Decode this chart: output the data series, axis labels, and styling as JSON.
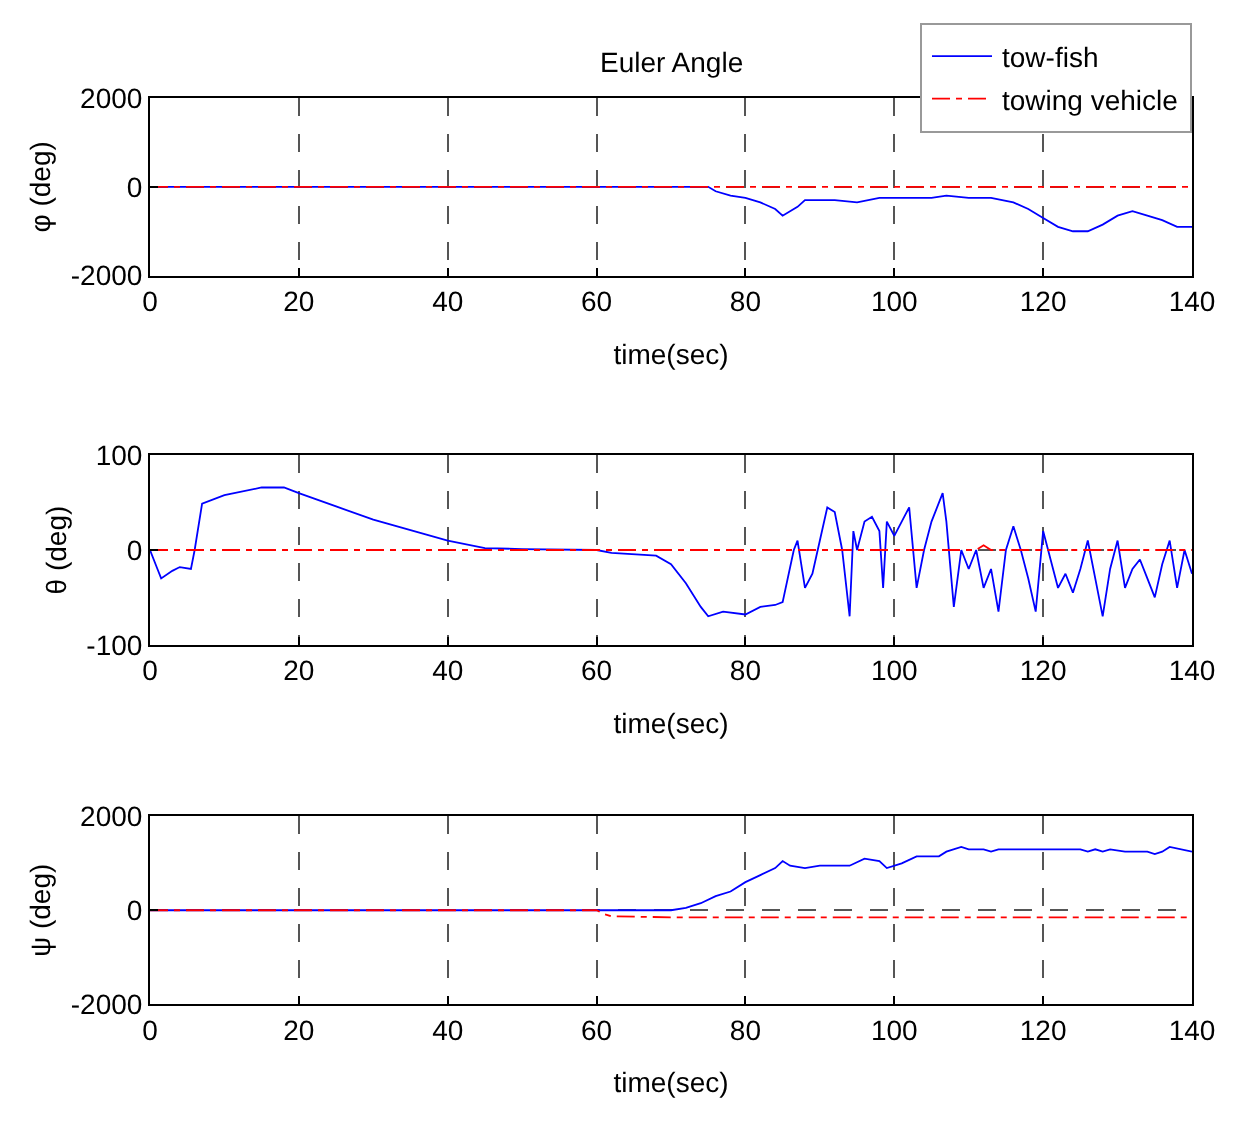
{
  "chart_data": [
    {
      "type": "line",
      "title": "Euler Angle",
      "xlabel": "time(sec)",
      "ylabel": "φ (deg)",
      "xlim": [
        0,
        140
      ],
      "xticks": [
        0,
        20,
        40,
        60,
        80,
        100,
        120,
        140
      ],
      "ylim": [
        -2000,
        2000
      ],
      "yticks": [
        -2000,
        0,
        2000
      ],
      "grid": true,
      "legend": "top right",
      "marker": "none",
      "series": [
        {
          "name": "tow-fish",
          "color": "#0000ff",
          "line_style": "solid",
          "x": [
            0,
            75,
            76,
            78,
            80,
            82,
            84,
            85,
            87,
            88,
            92,
            95,
            98,
            100,
            105,
            107,
            110,
            113,
            116,
            118,
            120,
            122,
            124,
            126,
            128,
            130,
            132,
            134,
            136,
            138,
            140
          ],
          "values": [
            0,
            0,
            -100,
            -200,
            -250,
            -350,
            -500,
            -650,
            -450,
            -300,
            -300,
            -350,
            -250,
            -250,
            -250,
            -200,
            -250,
            -250,
            -350,
            -500,
            -700,
            -900,
            -1000,
            -1000,
            -850,
            -650,
            -550,
            -650,
            -750,
            -900,
            -900
          ]
        },
        {
          "name": "towing vehicle",
          "color": "#ff0000",
          "line_style": "dashed",
          "x": [
            0,
            140
          ],
          "values": [
            0,
            0
          ]
        }
      ]
    },
    {
      "type": "line",
      "xlabel": "time(sec)",
      "ylabel": "θ (deg)",
      "xlim": [
        0,
        140
      ],
      "xticks": [
        0,
        20,
        40,
        60,
        80,
        100,
        120,
        140
      ],
      "ylim": [
        -100,
        100
      ],
      "yticks": [
        -100,
        0,
        100
      ],
      "grid": true,
      "marker": "none",
      "series": [
        {
          "color": "#0000ff",
          "line_style": "solid",
          "x": [
            0,
            1,
            1.5,
            3,
            4,
            5.5,
            6,
            7,
            10,
            15,
            18,
            20,
            25,
            30,
            35,
            40,
            45,
            50,
            60,
            62,
            68,
            70,
            72,
            74,
            75,
            77,
            80,
            82,
            84,
            85,
            86.5,
            87,
            88,
            89,
            90,
            91,
            92,
            93,
            94,
            94.5,
            95,
            96,
            97,
            98,
            98.5,
            99,
            100,
            101,
            102,
            103,
            104,
            105,
            106.5,
            107,
            108,
            109,
            110,
            111,
            112,
            113,
            114,
            115,
            116,
            117,
            118,
            119,
            120,
            121,
            122,
            123,
            124,
            125,
            126,
            127,
            128,
            129,
            130,
            131,
            132,
            133,
            134,
            135,
            136,
            137,
            138,
            139,
            140
          ],
          "values": [
            0,
            -20,
            -30,
            -22,
            -18,
            -20,
            0,
            49,
            58,
            66,
            66,
            60,
            46,
            32,
            21,
            10,
            2,
            1,
            0,
            -3,
            -6,
            -15,
            -35,
            -60,
            -70,
            -65,
            -68,
            -60,
            -58,
            -55,
            0,
            10,
            -40,
            -25,
            10,
            45,
            40,
            0,
            -70,
            20,
            0,
            30,
            35,
            20,
            -40,
            30,
            15,
            30,
            45,
            -40,
            0,
            30,
            60,
            30,
            -60,
            0,
            -20,
            0,
            -40,
            -20,
            -65,
            0,
            25,
            0,
            -30,
            -65,
            20,
            -10,
            -40,
            -25,
            -45,
            -20,
            10,
            -30,
            -70,
            -20,
            10,
            -40,
            -20,
            -10,
            -30,
            -50,
            -15,
            10,
            -40,
            0,
            -25
          ]
        },
        {
          "color": "#ff0000",
          "line_style": "dashed",
          "x": [
            0,
            111,
            112,
            113,
            140
          ],
          "values": [
            0,
            0,
            5,
            0,
            0
          ]
        }
      ]
    },
    {
      "type": "line",
      "xlabel": "time(sec)",
      "ylabel": "ψ (deg)",
      "xlim": [
        0,
        140
      ],
      "xticks": [
        0,
        20,
        40,
        60,
        80,
        100,
        120,
        140
      ],
      "ylim": [
        -2000,
        2000
      ],
      "yticks": [
        -2000,
        0,
        2000
      ],
      "grid": true,
      "marker": "none",
      "series": [
        {
          "color": "#0000ff",
          "line_style": "solid",
          "x": [
            0,
            70,
            72,
            74,
            76,
            78,
            80,
            82,
            84,
            85,
            86,
            88,
            90,
            94,
            96,
            98,
            99,
            101,
            103,
            106,
            107,
            109,
            110,
            112,
            113,
            114,
            116,
            120,
            125,
            126,
            127,
            128,
            129,
            131,
            134,
            135,
            136,
            137,
            140
          ],
          "values": [
            0,
            0,
            50,
            150,
            300,
            400,
            600,
            750,
            900,
            1050,
            950,
            900,
            950,
            950,
            1100,
            1050,
            900,
            1000,
            1150,
            1150,
            1250,
            1350,
            1300,
            1300,
            1250,
            1300,
            1300,
            1300,
            1300,
            1250,
            1300,
            1250,
            1300,
            1250,
            1250,
            1200,
            1250,
            1350,
            1250
          ]
        },
        {
          "color": "#ff0000",
          "line_style": "dashed",
          "x": [
            0,
            60,
            61,
            62,
            70,
            140
          ],
          "values": [
            0,
            0,
            -80,
            -130,
            -150,
            -150
          ]
        }
      ]
    }
  ]
}
